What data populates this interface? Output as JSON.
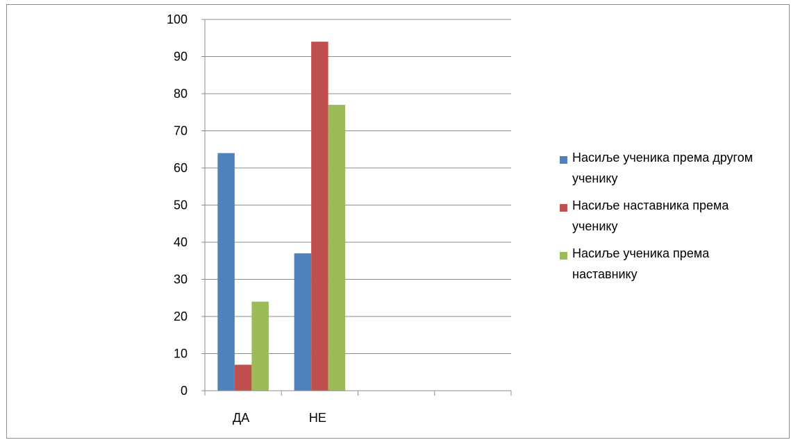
{
  "chart_data": {
    "type": "bar",
    "categories": [
      "ДА",
      "НЕ",
      "",
      ""
    ],
    "series": [
      {
        "name": "Насиље ученика према другом ученику",
        "color": "#4f81bd",
        "values": [
          64,
          37,
          null,
          null
        ]
      },
      {
        "name": "Насиље наставника према ученику",
        "color": "#c0504d",
        "values": [
          7,
          94,
          null,
          null
        ]
      },
      {
        "name": "Насиље ученика према наставнику",
        "color": "#9bbb59",
        "values": [
          24,
          77,
          null,
          null
        ]
      }
    ],
    "ylim": [
      0,
      100
    ],
    "yticks": [
      0,
      10,
      20,
      30,
      40,
      50,
      60,
      70,
      80,
      90,
      100
    ],
    "grid": true,
    "legend_position": "right"
  }
}
